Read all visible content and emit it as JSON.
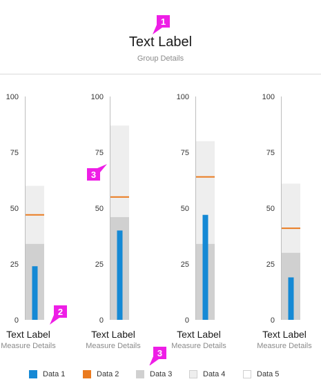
{
  "header": {
    "title": "Text Label",
    "subtitle": "Group Details"
  },
  "callouts": [
    "1",
    "2",
    "3",
    "3"
  ],
  "colors": {
    "data1": "#1589d5",
    "data2": "#ea7a1e",
    "data3": "#d0d0d0",
    "data4": "#eeeeee",
    "data5": "#ffffff",
    "callout": "#ee1ee6",
    "axis": "#bdbdbd"
  },
  "chart_data": {
    "type": "bar",
    "ylim": [
      0,
      100
    ],
    "yticks": [
      "100",
      "75",
      "50",
      "25",
      "0"
    ],
    "legend_position": "bottom",
    "legend": [
      {
        "key": "data1",
        "label": "Data 1"
      },
      {
        "key": "data2",
        "label": "Data 2"
      },
      {
        "key": "data3",
        "label": "Data 3"
      },
      {
        "key": "data4",
        "label": "Data 4"
      },
      {
        "key": "data5",
        "label": "Data 5"
      }
    ],
    "charts": [
      {
        "label": "Text Label",
        "sublabel": "Measure Details",
        "data1": 24,
        "data2": 47,
        "data3": 34,
        "data4": 60,
        "data5": 100
      },
      {
        "label": "Text Label",
        "sublabel": "Measure Details",
        "data1": 40,
        "data2": 55,
        "data3": 46,
        "data4": 87,
        "data5": 100
      },
      {
        "label": "Text Label",
        "sublabel": "Measure Details",
        "data1": 47,
        "data2": 64,
        "data3": 34,
        "data4": 80,
        "data5": 100
      },
      {
        "label": "Text Label",
        "sublabel": "Measure Details",
        "data1": 19,
        "data2": 41,
        "data3": 30,
        "data4": 61,
        "data5": 100
      }
    ]
  }
}
